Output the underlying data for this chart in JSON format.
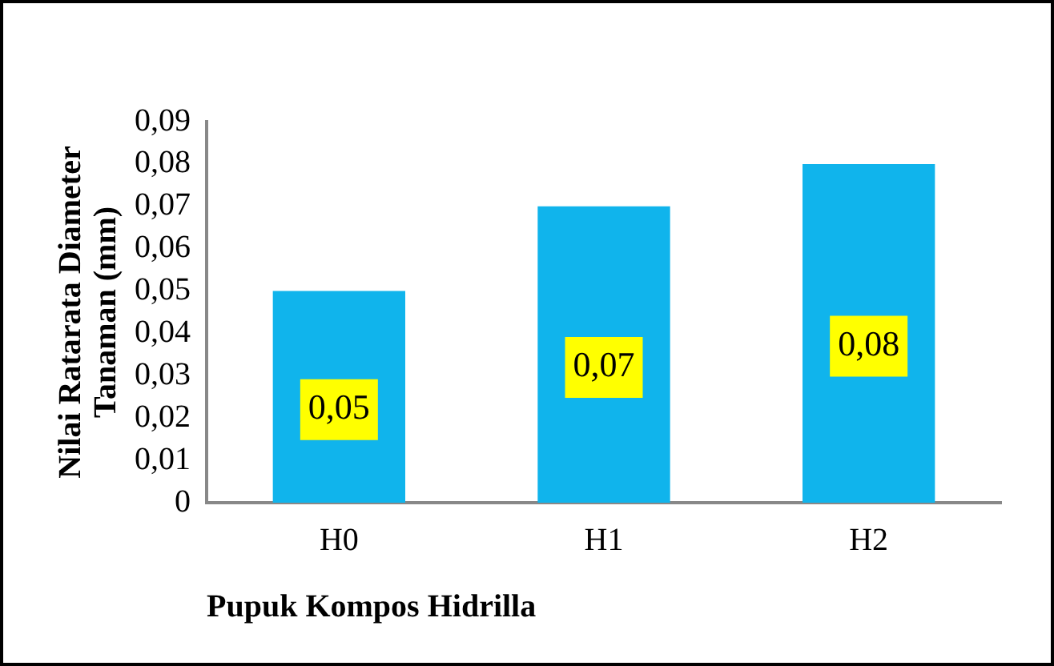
{
  "chart_data": {
    "type": "bar",
    "ylabel": "Nilai Ratarata Diameter Tanaman (mm)",
    "xlabel": "Pupuk Kompos Hidrilla",
    "categories": [
      "H0",
      "H1",
      "H2"
    ],
    "values": [
      0.05,
      0.07,
      0.08
    ],
    "value_labels": [
      "0,05",
      "0,07",
      "0,08"
    ],
    "color": "#10b4ec",
    "ylim": [
      0,
      0.09
    ],
    "yticks": [
      0,
      {
        "value": 0.01,
        "label": "0,01"
      },
      {
        "value": 0.02,
        "label": "0,02"
      },
      {
        "value": 0.03,
        "label": "0,03"
      },
      {
        "value": 0.04,
        "label": "0,04"
      },
      {
        "value": 0.05,
        "label": "0,05"
      },
      {
        "value": 0.06,
        "label": "0,06"
      },
      {
        "value": 0.07,
        "label": "0,07"
      },
      {
        "value": 0.08,
        "label": "0,08"
      },
      {
        "value": 0.09,
        "label": "0,09"
      }
    ],
    "grid": false,
    "legend": false
  }
}
